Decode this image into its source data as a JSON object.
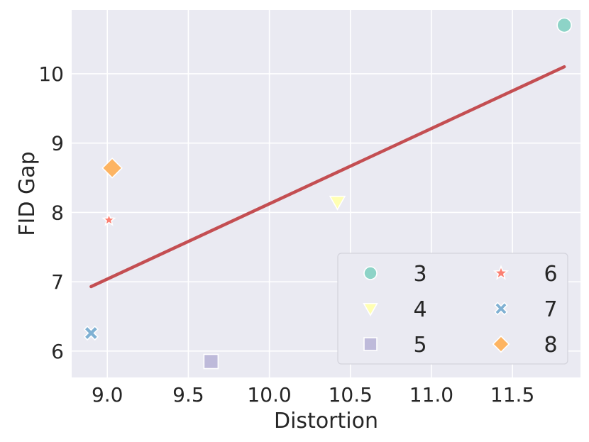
{
  "chart_data": {
    "type": "scatter",
    "xlabel": "Distortion",
    "ylabel": "FID Gap",
    "xlim": [
      8.78,
      11.92
    ],
    "ylim": [
      5.62,
      10.92
    ],
    "xticks": [
      9.0,
      9.5,
      10.0,
      10.5,
      11.0,
      11.5
    ],
    "xtick_labels": [
      "9.0",
      "9.5",
      "10.0",
      "10.5",
      "11.0",
      "11.5"
    ],
    "yticks": [
      6,
      7,
      8,
      9,
      10
    ],
    "ytick_labels": [
      "6",
      "7",
      "8",
      "9",
      "10"
    ],
    "grid": true,
    "background": "#eaeaf2",
    "series": [
      {
        "name": "3",
        "marker": "circle",
        "color": "#8dd3c7",
        "x": 11.82,
        "y": 10.7
      },
      {
        "name": "4",
        "marker": "triangle-down",
        "color": "#ffffb3",
        "x": 10.42,
        "y": 8.15
      },
      {
        "name": "5",
        "marker": "square",
        "color": "#bebada",
        "x": 9.64,
        "y": 5.85
      },
      {
        "name": "6",
        "marker": "star",
        "color": "#fb8072",
        "x": 9.01,
        "y": 7.89
      },
      {
        "name": "7",
        "marker": "x",
        "color": "#80b1d3",
        "x": 8.9,
        "y": 6.26
      },
      {
        "name": "8",
        "marker": "diamond",
        "color": "#fdb462",
        "x": 9.03,
        "y": 8.64
      }
    ],
    "trend_line": {
      "color": "#c44e52",
      "x": [
        8.9,
        11.82
      ],
      "y": [
        6.93,
        10.1
      ]
    },
    "legend": {
      "position": "lower-right",
      "columns": 2
    }
  }
}
